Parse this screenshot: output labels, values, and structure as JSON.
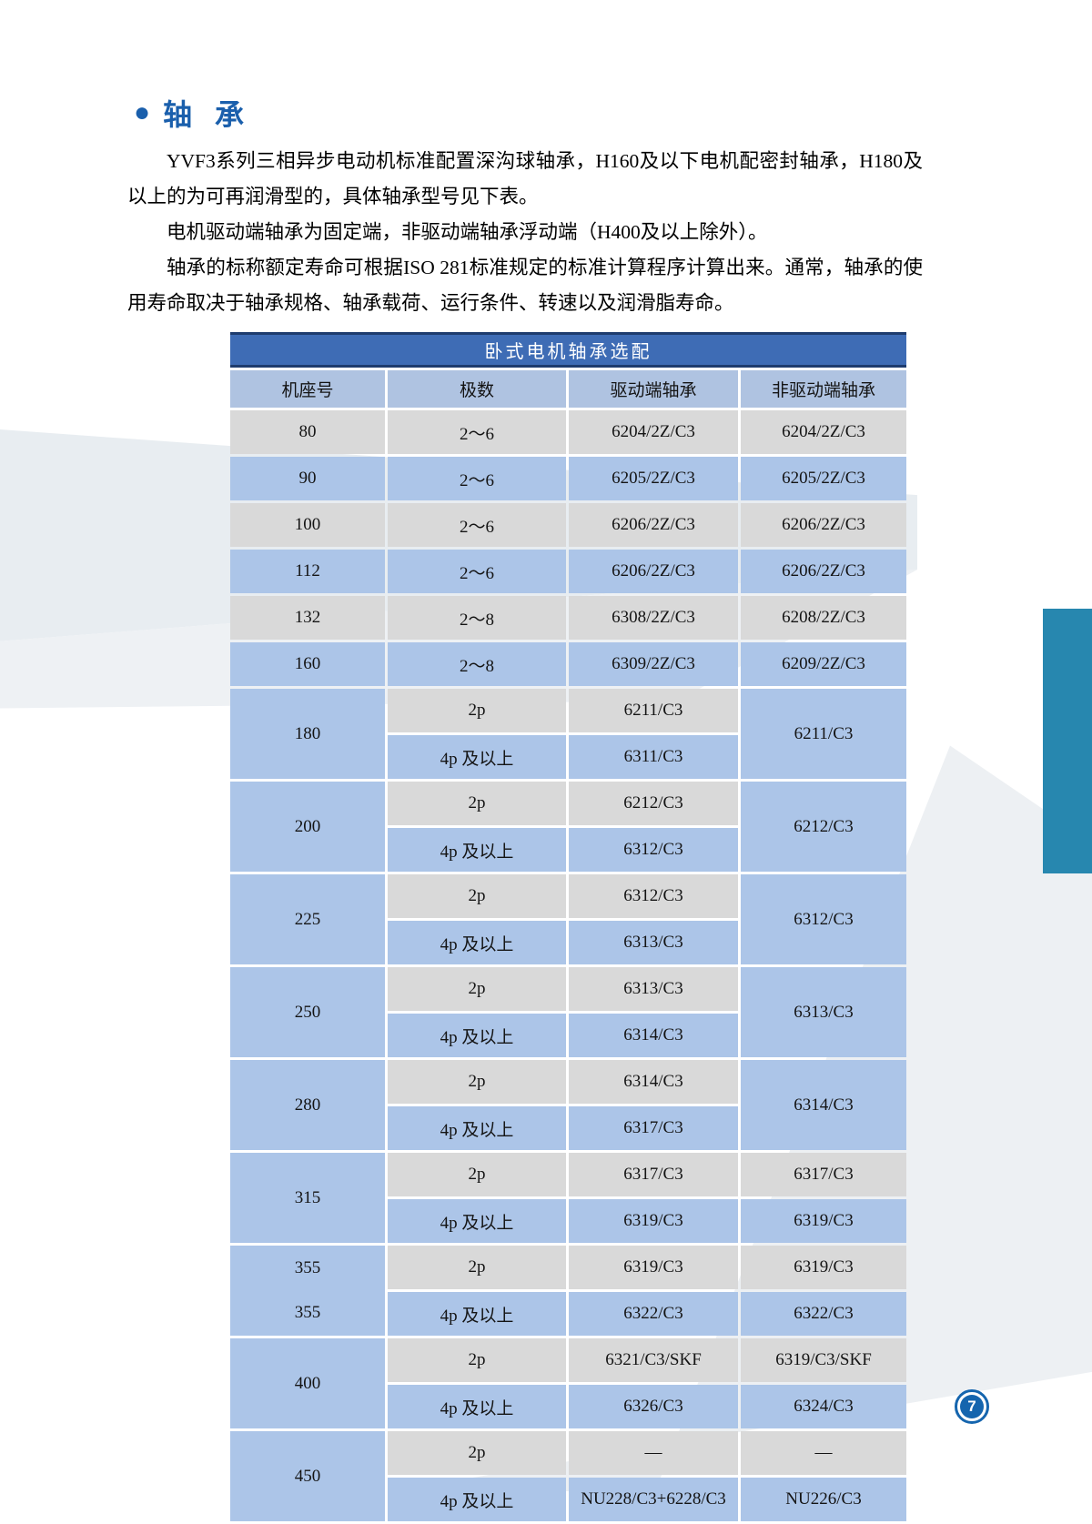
{
  "page": {
    "bullet": "●",
    "section_title": "轴 承",
    "paragraphs": [
      "YVF3系列三相异步电动机标准配置深沟球轴承，H160及以下电机配密封轴承，H180及以上的为可再润滑型的，具体轴承型号见下表。",
      "电机驱动端轴承为固定端，非驱动端轴承浮动端（H400及以上除外）。",
      "轴承的标称额定寿命可根据ISO 281标准规定的标准计算程序计算出来。通常，轴承的使用寿命取决于轴承规格、轴承载荷、运行条件、转速以及润滑脂寿命。"
    ],
    "page_number": "7"
  },
  "table": {
    "title": "卧式电机轴承选配",
    "columns": [
      "机座号",
      "极数",
      "驱动端轴承",
      "非驱动端轴承"
    ],
    "rows": [
      {
        "cells": [
          {
            "text": "80",
            "shade": "g"
          },
          {
            "text": "2～6",
            "shade": "g"
          },
          {
            "text": "6204/2Z/C3",
            "shade": "g"
          },
          {
            "text": "6204/2Z/C3",
            "shade": "g"
          }
        ]
      },
      {
        "cells": [
          {
            "text": "90",
            "shade": "b"
          },
          {
            "text": "2～6",
            "shade": "b"
          },
          {
            "text": "6205/2Z/C3",
            "shade": "b"
          },
          {
            "text": "6205/2Z/C3",
            "shade": "b"
          }
        ]
      },
      {
        "cells": [
          {
            "text": "100",
            "shade": "g"
          },
          {
            "text": "2～6",
            "shade": "g"
          },
          {
            "text": "6206/2Z/C3",
            "shade": "g"
          },
          {
            "text": "6206/2Z/C3",
            "shade": "g"
          }
        ]
      },
      {
        "cells": [
          {
            "text": "112",
            "shade": "b"
          },
          {
            "text": "2～6",
            "shade": "b"
          },
          {
            "text": "6206/2Z/C3",
            "shade": "b"
          },
          {
            "text": "6206/2Z/C3",
            "shade": "b"
          }
        ]
      },
      {
        "cells": [
          {
            "text": "132",
            "shade": "g"
          },
          {
            "text": "2～8",
            "shade": "g"
          },
          {
            "text": "6308/2Z/C3",
            "shade": "g"
          },
          {
            "text": "6208/2Z/C3",
            "shade": "g"
          }
        ]
      },
      {
        "cells": [
          {
            "text": "160",
            "shade": "b"
          },
          {
            "text": "2～8",
            "shade": "b"
          },
          {
            "text": "6309/2Z/C3",
            "shade": "b"
          },
          {
            "text": "6209/2Z/C3",
            "shade": "b"
          }
        ]
      },
      {
        "cells": [
          {
            "text": "180",
            "shade": "b",
            "rowspan": 2
          },
          {
            "text": "2p",
            "shade": "g"
          },
          {
            "text": "6211/C3",
            "shade": "g"
          },
          {
            "text": "6211/C3",
            "shade": "b",
            "rowspan": 2
          }
        ]
      },
      {
        "cells": [
          {
            "text": "4p 及以上",
            "shade": "b"
          },
          {
            "text": "6311/C3",
            "shade": "b"
          }
        ]
      },
      {
        "cells": [
          {
            "text": "200",
            "shade": "b",
            "rowspan": 2
          },
          {
            "text": "2p",
            "shade": "g"
          },
          {
            "text": "6212/C3",
            "shade": "g"
          },
          {
            "text": "6212/C3",
            "shade": "b",
            "rowspan": 2
          }
        ]
      },
      {
        "cells": [
          {
            "text": "4p 及以上",
            "shade": "b"
          },
          {
            "text": "6312/C3",
            "shade": "b"
          }
        ]
      },
      {
        "cells": [
          {
            "text": "225",
            "shade": "b",
            "rowspan": 2
          },
          {
            "text": "2p",
            "shade": "g"
          },
          {
            "text": "6312/C3",
            "shade": "g"
          },
          {
            "text": "6312/C3",
            "shade": "b",
            "rowspan": 2
          }
        ]
      },
      {
        "cells": [
          {
            "text": "4p 及以上",
            "shade": "b"
          },
          {
            "text": "6313/C3",
            "shade": "b"
          }
        ]
      },
      {
        "cells": [
          {
            "text": "250",
            "shade": "b",
            "rowspan": 2
          },
          {
            "text": "2p",
            "shade": "g"
          },
          {
            "text": "6313/C3",
            "shade": "g"
          },
          {
            "text": "6313/C3",
            "shade": "b",
            "rowspan": 2
          }
        ]
      },
      {
        "cells": [
          {
            "text": "4p 及以上",
            "shade": "b"
          },
          {
            "text": "6314/C3",
            "shade": "b"
          }
        ]
      },
      {
        "cells": [
          {
            "text": "280",
            "shade": "b",
            "rowspan": 2
          },
          {
            "text": "2p",
            "shade": "g"
          },
          {
            "text": "6314/C3",
            "shade": "g"
          },
          {
            "text": "6314/C3",
            "shade": "b",
            "rowspan": 2
          }
        ]
      },
      {
        "cells": [
          {
            "text": "4p 及以上",
            "shade": "b"
          },
          {
            "text": "6317/C3",
            "shade": "b"
          }
        ]
      },
      {
        "cells": [
          {
            "text": "315",
            "shade": "b",
            "rowspan": 2
          },
          {
            "text": "2p",
            "shade": "g"
          },
          {
            "text": "6317/C3",
            "shade": "g"
          },
          {
            "text": "6317/C3",
            "shade": "g"
          }
        ]
      },
      {
        "cells": [
          {
            "text": "4p 及以上",
            "shade": "b"
          },
          {
            "text": "6319/C3",
            "shade": "b"
          },
          {
            "text": "6319/C3",
            "shade": "b"
          }
        ]
      },
      {
        "cells": [
          {
            "lines": [
              "355",
              "355"
            ],
            "shade": "b",
            "rowspan": 2
          },
          {
            "text": "2p",
            "shade": "g"
          },
          {
            "text": "6319/C3",
            "shade": "g"
          },
          {
            "text": "6319/C3",
            "shade": "g"
          }
        ]
      },
      {
        "cells": [
          {
            "text": "4p 及以上",
            "shade": "b"
          },
          {
            "text": "6322/C3",
            "shade": "b"
          },
          {
            "text": "6322/C3",
            "shade": "b"
          }
        ]
      },
      {
        "cells": [
          {
            "text": "400",
            "shade": "b",
            "rowspan": 2
          },
          {
            "text": "2p",
            "shade": "g"
          },
          {
            "text": "6321/C3/SKF",
            "shade": "g"
          },
          {
            "text": "6319/C3/SKF",
            "shade": "g"
          }
        ]
      },
      {
        "cells": [
          {
            "text": "4p 及以上",
            "shade": "b"
          },
          {
            "text": "6326/C3",
            "shade": "b"
          },
          {
            "text": "6324/C3",
            "shade": "b"
          }
        ]
      },
      {
        "cells": [
          {
            "text": "450",
            "shade": "b",
            "rowspan": 2
          },
          {
            "text": "2p",
            "shade": "g"
          },
          {
            "text": "—",
            "shade": "g"
          },
          {
            "text": "—",
            "shade": "g"
          }
        ]
      },
      {
        "cells": [
          {
            "text": "4p 及以上",
            "shade": "b"
          },
          {
            "text": "NU228/C3+6228/C3",
            "shade": "b"
          },
          {
            "text": "NU226/C3",
            "shade": "b"
          }
        ]
      }
    ]
  },
  "colors": {
    "accent_blue": "#1A5FAC",
    "table_title_bar": "#3E6CB5",
    "table_title_border": "#1E3C6E",
    "header_row_blue": "#AFC3E1",
    "row_blue": "#ACC5E8",
    "row_gray": "#D9D9D9",
    "side_accent_teal": "#2787AF",
    "page_badge_blue": "#1565AE"
  }
}
